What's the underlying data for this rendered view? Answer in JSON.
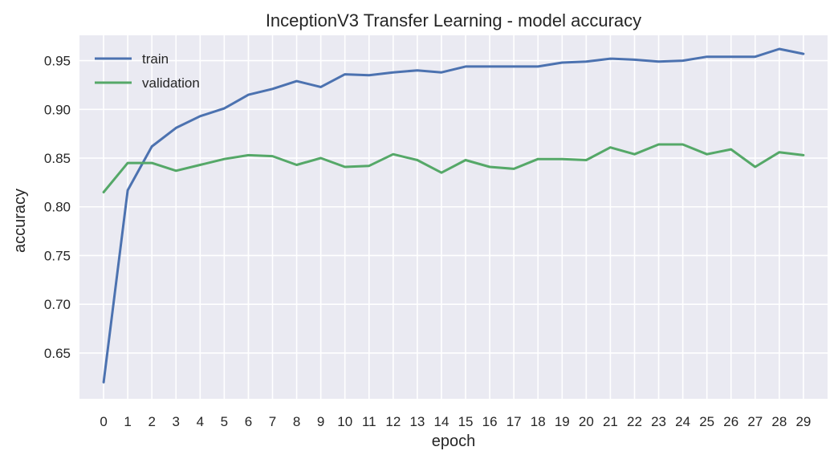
{
  "chart_data": {
    "type": "line",
    "title": "InceptionV3 Transfer Learning - model accuracy",
    "xlabel": "epoch",
    "ylabel": "accuracy",
    "x": [
      0,
      1,
      2,
      3,
      4,
      5,
      6,
      7,
      8,
      9,
      10,
      11,
      12,
      13,
      14,
      15,
      16,
      17,
      18,
      19,
      20,
      21,
      22,
      23,
      24,
      25,
      26,
      27,
      28,
      29
    ],
    "xticks": [
      "0",
      "1",
      "2",
      "3",
      "4",
      "5",
      "6",
      "7",
      "8",
      "9",
      "10",
      "11",
      "12",
      "13",
      "14",
      "15",
      "16",
      "17",
      "18",
      "19",
      "20",
      "21",
      "22",
      "23",
      "24",
      "25",
      "26",
      "27",
      "28",
      "29"
    ],
    "yticks": [
      "0.65",
      "0.70",
      "0.75",
      "0.80",
      "0.85",
      "0.90",
      "0.95"
    ],
    "ylim": [
      0.603,
      0.976
    ],
    "xlim": [
      -1,
      30
    ],
    "grid": true,
    "legend_position": "top-left",
    "background": "#EAEAF2",
    "series": [
      {
        "name": "train",
        "color": "#4C72B0",
        "values": [
          0.62,
          0.817,
          0.862,
          0.881,
          0.893,
          0.901,
          0.915,
          0.921,
          0.929,
          0.923,
          0.936,
          0.935,
          0.938,
          0.94,
          0.938,
          0.944,
          0.944,
          0.944,
          0.944,
          0.948,
          0.949,
          0.952,
          0.951,
          0.949,
          0.95,
          0.954,
          0.954,
          0.954,
          0.962,
          0.957
        ]
      },
      {
        "name": "validation",
        "color": "#55A868",
        "values": [
          0.815,
          0.845,
          0.845,
          0.837,
          0.843,
          0.849,
          0.853,
          0.852,
          0.843,
          0.85,
          0.841,
          0.842,
          0.854,
          0.848,
          0.835,
          0.848,
          0.841,
          0.839,
          0.849,
          0.849,
          0.848,
          0.861,
          0.854,
          0.864,
          0.864,
          0.854,
          0.859,
          0.841,
          0.856,
          0.853
        ]
      }
    ]
  }
}
